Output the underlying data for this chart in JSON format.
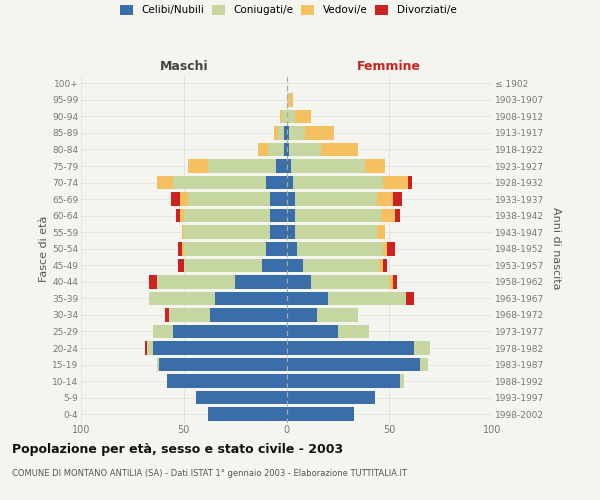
{
  "age_groups": [
    "0-4",
    "5-9",
    "10-14",
    "15-19",
    "20-24",
    "25-29",
    "30-34",
    "35-39",
    "40-44",
    "45-49",
    "50-54",
    "55-59",
    "60-64",
    "65-69",
    "70-74",
    "75-79",
    "80-84",
    "85-89",
    "90-94",
    "95-99",
    "100+"
  ],
  "birth_years": [
    "1998-2002",
    "1993-1997",
    "1988-1992",
    "1983-1987",
    "1978-1982",
    "1973-1977",
    "1968-1972",
    "1963-1967",
    "1958-1962",
    "1953-1957",
    "1948-1952",
    "1943-1947",
    "1938-1942",
    "1933-1937",
    "1928-1932",
    "1923-1927",
    "1918-1922",
    "1913-1917",
    "1908-1912",
    "1903-1907",
    "≤ 1902"
  ],
  "maschi": {
    "celibi": [
      38,
      44,
      58,
      62,
      65,
      55,
      37,
      35,
      25,
      12,
      10,
      8,
      8,
      8,
      10,
      5,
      1,
      1,
      0,
      0,
      0
    ],
    "coniugati": [
      0,
      0,
      0,
      1,
      3,
      10,
      20,
      32,
      38,
      38,
      40,
      42,
      42,
      40,
      45,
      33,
      8,
      3,
      2,
      0,
      0
    ],
    "vedovi": [
      0,
      0,
      0,
      0,
      0,
      0,
      0,
      0,
      0,
      0,
      1,
      1,
      2,
      4,
      8,
      10,
      5,
      2,
      1,
      0,
      0
    ],
    "divorziati": [
      0,
      0,
      0,
      0,
      1,
      0,
      2,
      0,
      4,
      3,
      2,
      0,
      2,
      4,
      0,
      0,
      0,
      0,
      0,
      0,
      0
    ]
  },
  "femmine": {
    "nubili": [
      33,
      43,
      55,
      65,
      62,
      25,
      15,
      20,
      12,
      8,
      5,
      4,
      4,
      4,
      3,
      2,
      1,
      1,
      0,
      0,
      0
    ],
    "coniugate": [
      0,
      0,
      2,
      4,
      8,
      15,
      20,
      38,
      38,
      37,
      42,
      40,
      42,
      40,
      44,
      36,
      16,
      8,
      4,
      1,
      0
    ],
    "vedove": [
      0,
      0,
      0,
      0,
      0,
      0,
      0,
      0,
      2,
      2,
      2,
      4,
      7,
      8,
      12,
      10,
      18,
      14,
      8,
      2,
      0
    ],
    "divorziate": [
      0,
      0,
      0,
      0,
      0,
      0,
      0,
      4,
      2,
      2,
      4,
      0,
      2,
      4,
      2,
      0,
      0,
      0,
      0,
      0,
      0
    ]
  },
  "colors": {
    "celibi": "#3a6ea8",
    "coniugati": "#c5d6a0",
    "vedovi": "#f5c060",
    "divorziati": "#cc2222"
  },
  "xlim": 100,
  "title": "Popolazione per età, sesso e stato civile - 2003",
  "subtitle": "COMUNE DI MONTANO ANTILIA (SA) - Dati ISTAT 1° gennaio 2003 - Elaborazione TUTTITALIA.IT",
  "ylabel_left": "Fasce di età",
  "ylabel_right": "Anni di nascita",
  "xlabel_maschi": "Maschi",
  "xlabel_femmine": "Femmine",
  "bg_color": "#f5f5f0",
  "grid_color": "#dddddd",
  "legend_labels": [
    "Celibi/Nubili",
    "Coniugati/e",
    "Vedovi/e",
    "Divorziati/e"
  ]
}
